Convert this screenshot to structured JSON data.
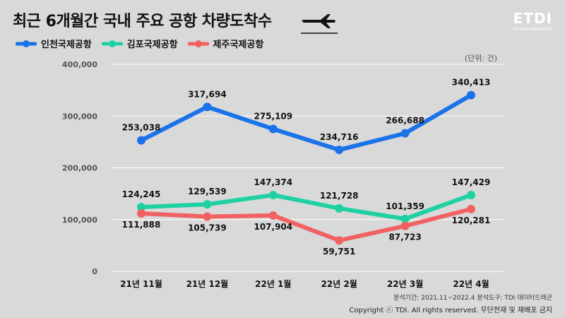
{
  "title": "최근 6개월간 국내 주요 공항 차량도착수",
  "logo": {
    "main": "ETDI",
    "sub": "THE DATA INNOVATION"
  },
  "unit_label": "(단위: 건)",
  "footer": {
    "period": "분석기간: 2021.11~2022.4   분석도구: TDI 데이터드래곤",
    "copyright": "Copyright ⓒ TDI. All rights reserved. 무단전재 및 재배포 금지"
  },
  "icons": {
    "plane": "airplane-icon"
  },
  "chart_data": {
    "type": "line",
    "categories": [
      "21년 11월",
      "21년 12월",
      "22년 1월",
      "22년 2월",
      "22년 3월",
      "22년 4월"
    ],
    "ylim": [
      0,
      400000
    ],
    "yticks": [
      0,
      100000,
      200000,
      300000,
      400000
    ],
    "ytick_labels": [
      "0",
      "100,000",
      "200,000",
      "300,000",
      "400,000"
    ],
    "grid": true,
    "legend_position": "top-left",
    "series": [
      {
        "name": "인천국제공항",
        "color": "#1a73e8",
        "values": [
          253038,
          317694,
          275109,
          234716,
          266688,
          340413
        ],
        "labels": [
          "253,038",
          "317,694",
          "275,109",
          "234,716",
          "266,688",
          "340,413"
        ]
      },
      {
        "name": "김포국제공항",
        "color": "#1fd1a2",
        "values": [
          124245,
          129539,
          147374,
          121728,
          101359,
          147429
        ],
        "labels": [
          "124,245",
          "129,539",
          "147,374",
          "121,728",
          "101,359",
          "147,429"
        ]
      },
      {
        "name": "제주국제공항",
        "color": "#f06262",
        "values": [
          111888,
          105739,
          107904,
          59751,
          87723,
          120281
        ],
        "labels": [
          "111,888",
          "105,739",
          "107,904",
          "59,751",
          "87,723",
          "120,281"
        ]
      }
    ]
  }
}
